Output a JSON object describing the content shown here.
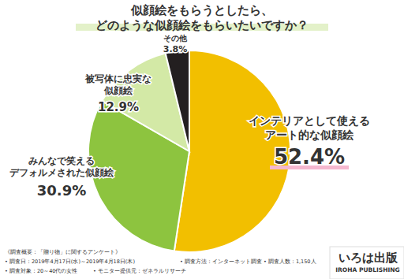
{
  "chart_data": {
    "type": "pie",
    "title": "似顔絵をもらうとしたら、\nどのような似顔絵をもらいたいですか？",
    "categories": [
      "インテリアとして使える\nアート的な似顔絵",
      "みんなで笑える\nデフォルメされた似顔絵",
      "被写体に忠実な\n似顔絵",
      "その他"
    ],
    "values": [
      52.4,
      30.9,
      12.9,
      3.8
    ],
    "value_labels": [
      "52.4%",
      "30.9%",
      "12.9%",
      "3.8%"
    ],
    "colors": [
      "#f2bf00",
      "#8dc43f",
      "#d3e9a6",
      "#231f20"
    ],
    "data_labels": true,
    "annotations": [
      "《調査概要：「贈り物」に関するアンケート》",
      "• 調査日：2019年4月17日(水)～2019年4月18日(木)",
      "• 調査方法：インターネット調査",
      "• 調査人数：1,150人",
      "• 調査対象：20～40代の女性",
      "• モニター提供元：ゼネラルリサーチ",
      "いろは出版",
      "IROHA PUBLISHING"
    ]
  }
}
